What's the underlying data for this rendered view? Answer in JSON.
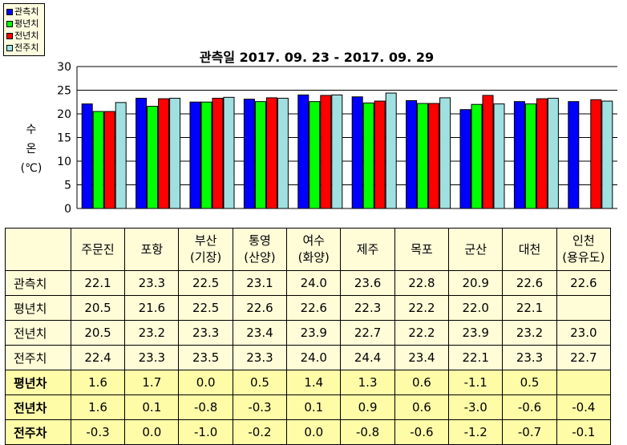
{
  "chart_data": {
    "type": "bar",
    "title": "관측일 2017. 09. 23 - 2017. 09. 29",
    "ylabel_lines": [
      "수",
      "온",
      "(℃)"
    ],
    "ylim": [
      0,
      30
    ],
    "yticks": [
      0,
      5,
      10,
      15,
      20,
      25,
      30
    ],
    "grid": "horizontal",
    "legend_position": "top-left",
    "categories": [
      "주문진",
      "포항",
      "부산\n(기장)",
      "통영\n(산양)",
      "여수\n(화양)",
      "제주",
      "목포",
      "군산",
      "대천",
      "인천\n(용유도)"
    ],
    "series": [
      {
        "name": "관측치",
        "color": "#0000ff",
        "values": [
          22.1,
          23.3,
          22.5,
          23.1,
          24.0,
          23.6,
          22.8,
          20.9,
          22.6,
          22.6
        ]
      },
      {
        "name": "평년치",
        "color": "#00ff00",
        "values": [
          20.5,
          21.6,
          22.5,
          22.6,
          22.6,
          22.3,
          22.2,
          22.0,
          22.1,
          null
        ]
      },
      {
        "name": "전년치",
        "color": "#ff0000",
        "values": [
          20.5,
          23.2,
          23.3,
          23.4,
          23.9,
          22.7,
          22.2,
          23.9,
          23.2,
          23.0
        ]
      },
      {
        "name": "전주치",
        "color": "#a0e0e0",
        "values": [
          22.4,
          23.3,
          23.5,
          23.3,
          24.0,
          24.4,
          23.4,
          22.1,
          23.3,
          22.7
        ]
      }
    ]
  },
  "table": {
    "rows": [
      {
        "label": "관측치",
        "diff": false,
        "cells": [
          "22.1",
          "23.3",
          "22.5",
          "23.1",
          "24.0",
          "23.6",
          "22.8",
          "20.9",
          "22.6",
          "22.6"
        ]
      },
      {
        "label": "평년치",
        "diff": false,
        "cells": [
          "20.5",
          "21.6",
          "22.5",
          "22.6",
          "22.6",
          "22.3",
          "22.2",
          "22.0",
          "22.1",
          ""
        ]
      },
      {
        "label": "전년치",
        "diff": false,
        "cells": [
          "20.5",
          "23.2",
          "23.3",
          "23.4",
          "23.9",
          "22.7",
          "22.2",
          "23.9",
          "23.2",
          "23.0"
        ]
      },
      {
        "label": "전주치",
        "diff": false,
        "cells": [
          "22.4",
          "23.3",
          "23.5",
          "23.3",
          "24.0",
          "24.4",
          "23.4",
          "22.1",
          "23.3",
          "22.7"
        ]
      },
      {
        "label": "평년차",
        "diff": true,
        "cells": [
          "1.6",
          "1.7",
          "0.0",
          "0.5",
          "1.4",
          "1.3",
          "0.6",
          "-1.1",
          "0.5",
          ""
        ]
      },
      {
        "label": "전년차",
        "diff": true,
        "cells": [
          "1.6",
          "0.1",
          "-0.8",
          "-0.3",
          "0.1",
          "0.9",
          "0.6",
          "-3.0",
          "-0.6",
          "-0.4"
        ]
      },
      {
        "label": "전주차",
        "diff": true,
        "cells": [
          "-0.3",
          "0.0",
          "-1.0",
          "-0.2",
          "0.0",
          "-0.8",
          "-0.6",
          "-1.2",
          "-0.7",
          "-0.1"
        ]
      }
    ]
  }
}
